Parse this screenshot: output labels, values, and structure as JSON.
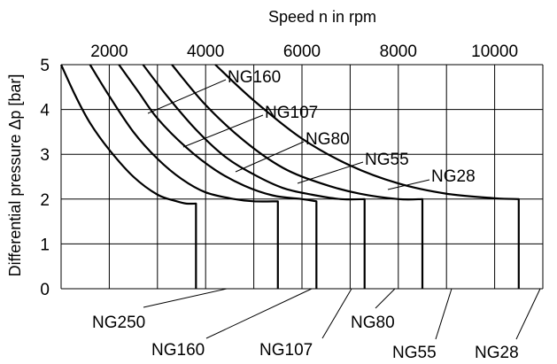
{
  "chart_data": {
    "type": "line",
    "title": "",
    "xlabel": "Speed n in rpm",
    "ylabel": "Differential pressure Δp [bar]",
    "x_axis_position": "top",
    "xlim": [
      1000,
      11000
    ],
    "ylim": [
      0,
      5
    ],
    "x_ticks": [
      2000,
      4000,
      6000,
      8000,
      10000
    ],
    "y_ticks": [
      0,
      1,
      2,
      3,
      4,
      5
    ],
    "grid": true,
    "series": [
      {
        "name": "NG250",
        "x": [
          1000,
          1300,
          1600,
          2000,
          2500,
          3000,
          3400,
          3600,
          3800,
          3800
        ],
        "y": [
          5,
          4.3,
          3.7,
          3.1,
          2.5,
          2.1,
          1.95,
          1.9,
          1.9,
          0
        ]
      },
      {
        "name": "NG160",
        "x": [
          1600,
          2000,
          2500,
          3000,
          3500,
          4000,
          4600,
          5000,
          5500,
          5500
        ],
        "y": [
          5,
          4.3,
          3.5,
          2.9,
          2.45,
          2.15,
          2.0,
          1.95,
          1.95,
          0
        ]
      },
      {
        "name": "NG107",
        "x": [
          2200,
          2600,
          3000,
          3600,
          4200,
          4800,
          5400,
          6000,
          6300,
          6300
        ],
        "y": [
          5,
          4.4,
          3.8,
          3.15,
          2.65,
          2.3,
          2.08,
          2.0,
          1.95,
          0
        ]
      },
      {
        "name": "NG80",
        "x": [
          2700,
          3200,
          3800,
          4400,
          5000,
          5600,
          6200,
          6800,
          7300,
          7300
        ],
        "y": [
          5,
          4.3,
          3.55,
          2.95,
          2.55,
          2.25,
          2.1,
          2.0,
          2.0,
          0
        ]
      },
      {
        "name": "NG55",
        "x": [
          3300,
          4000,
          4800,
          5600,
          6400,
          7200,
          8000,
          8500,
          8500
        ],
        "y": [
          5,
          4.1,
          3.3,
          2.7,
          2.35,
          2.12,
          2.0,
          2.0,
          0
        ]
      },
      {
        "name": "NG28",
        "x": [
          4200,
          5000,
          6000,
          7000,
          8000,
          9000,
          10000,
          10500,
          10500
        ],
        "y": [
          5,
          4.2,
          3.35,
          2.75,
          2.35,
          2.12,
          2.02,
          2.0,
          0
        ]
      }
    ],
    "curve_labels": [
      "NG160",
      "NG107",
      "NG80",
      "NG55",
      "NG28"
    ],
    "bottom_labels": [
      "NG250",
      "NG160",
      "NG107",
      "NG80",
      "NG55",
      "NG28"
    ]
  }
}
